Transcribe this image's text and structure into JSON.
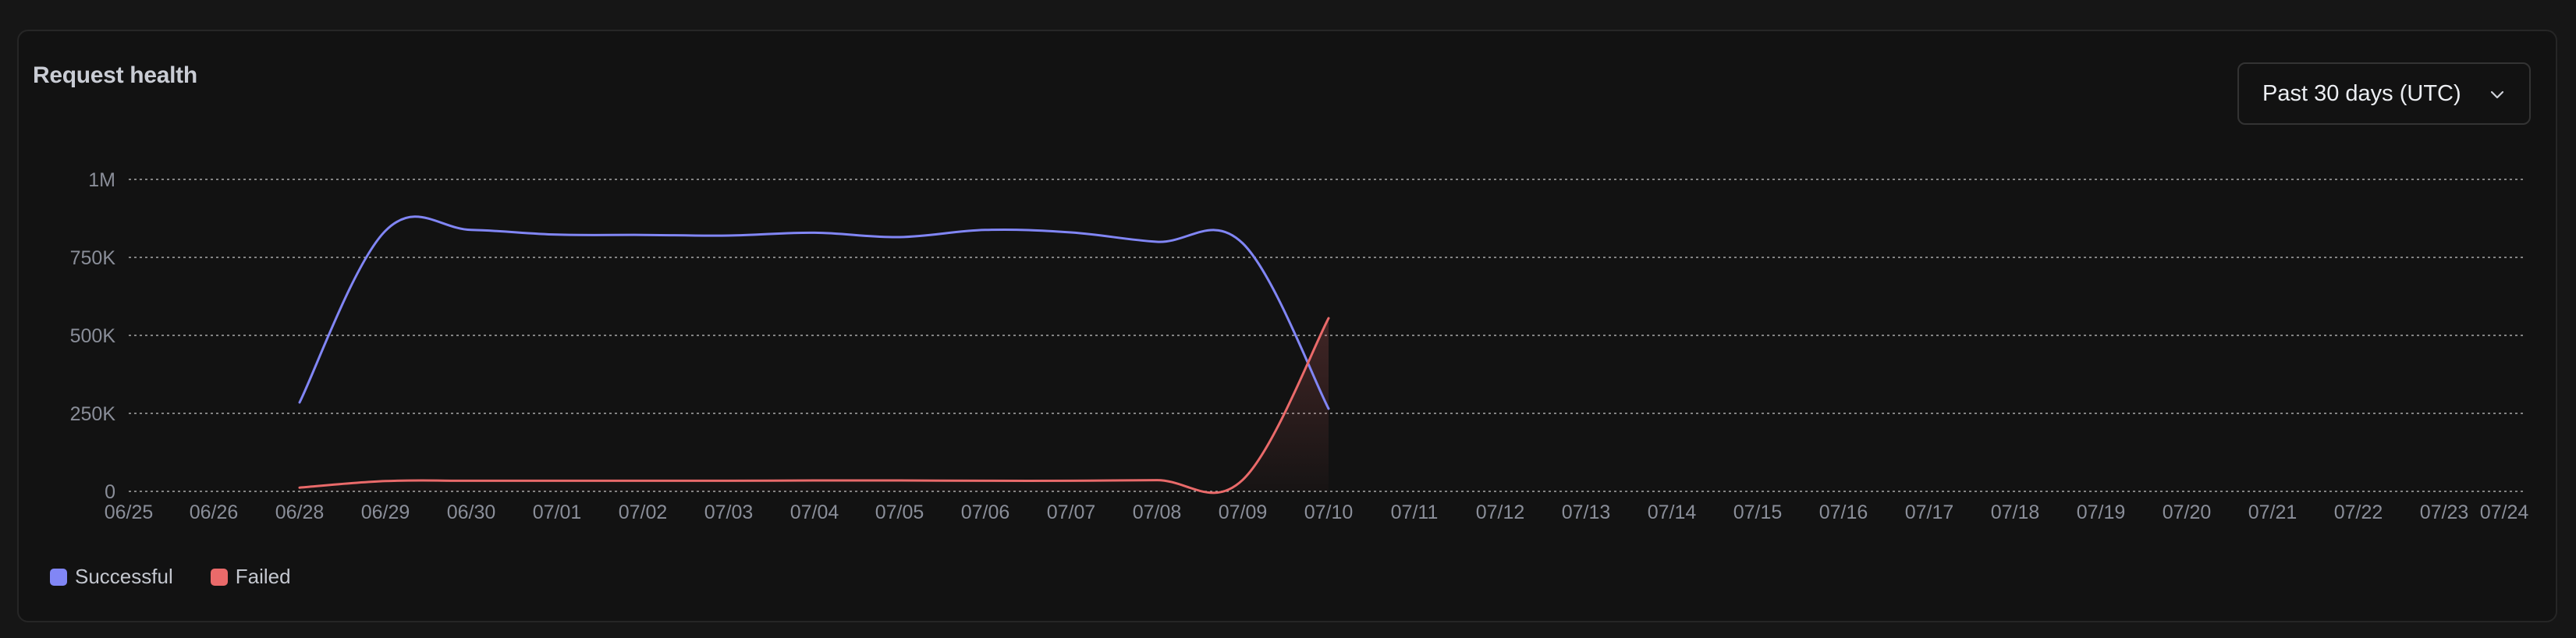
{
  "card": {
    "title": "Request health",
    "range_label": "Past 30 days (UTC)"
  },
  "chart_data": {
    "type": "line",
    "title": "",
    "xlabel": "",
    "ylabel": "",
    "x": [
      "06/25",
      "06/26",
      "06/28",
      "06/29",
      "06/30",
      "07/01",
      "07/02",
      "07/03",
      "07/04",
      "07/05",
      "07/06",
      "07/07",
      "07/08",
      "07/09",
      "07/10",
      "07/11",
      "07/12",
      "07/13",
      "07/14",
      "07/15",
      "07/16",
      "07/17",
      "07/18",
      "07/19",
      "07/20",
      "07/21",
      "07/22",
      "07/23",
      "07/24"
    ],
    "ylim": [
      0,
      1000000
    ],
    "y_ticks": [
      0,
      250000,
      500000,
      750000,
      1000000
    ],
    "y_tick_labels": [
      "0",
      "250K",
      "500K",
      "750K",
      "1M"
    ],
    "grid": true,
    "legend_position": "bottom-left",
    "series": [
      {
        "name": "Successful",
        "color": "#8186f5",
        "points": [
          {
            "x": "06/28",
            "y": 285000
          },
          {
            "x": "06/29",
            "y": 835000
          },
          {
            "x": "06/30",
            "y": 838000
          },
          {
            "x": "07/01",
            "y": 823000
          },
          {
            "x": "07/02",
            "y": 822000
          },
          {
            "x": "07/03",
            "y": 820000
          },
          {
            "x": "07/04",
            "y": 829000
          },
          {
            "x": "07/05",
            "y": 815000
          },
          {
            "x": "07/06",
            "y": 838000
          },
          {
            "x": "07/07",
            "y": 830000
          },
          {
            "x": "07/08",
            "y": 800000
          },
          {
            "x": "07/09",
            "y": 795000
          },
          {
            "x": "07/10",
            "y": 265000
          }
        ]
      },
      {
        "name": "Failed",
        "color": "#ea6a6a",
        "points": [
          {
            "x": "06/28",
            "y": 12000
          },
          {
            "x": "06/29",
            "y": 33000
          },
          {
            "x": "06/30",
            "y": 34000
          },
          {
            "x": "07/01",
            "y": 34000
          },
          {
            "x": "07/02",
            "y": 34000
          },
          {
            "x": "07/03",
            "y": 34000
          },
          {
            "x": "07/04",
            "y": 35000
          },
          {
            "x": "07/05",
            "y": 35000
          },
          {
            "x": "07/06",
            "y": 34000
          },
          {
            "x": "07/07",
            "y": 34000
          },
          {
            "x": "07/08",
            "y": 36000
          },
          {
            "x": "07/09",
            "y": 37000
          },
          {
            "x": "07/10",
            "y": 555000
          }
        ]
      }
    ]
  },
  "colors": {
    "background": "#121212",
    "grid": "#dcdcdc",
    "tick_text": "#8a8e99",
    "successful": "#8186f5",
    "failed": "#ea6a6a"
  },
  "icons": {
    "range_chevron": "chevron-down-icon"
  }
}
